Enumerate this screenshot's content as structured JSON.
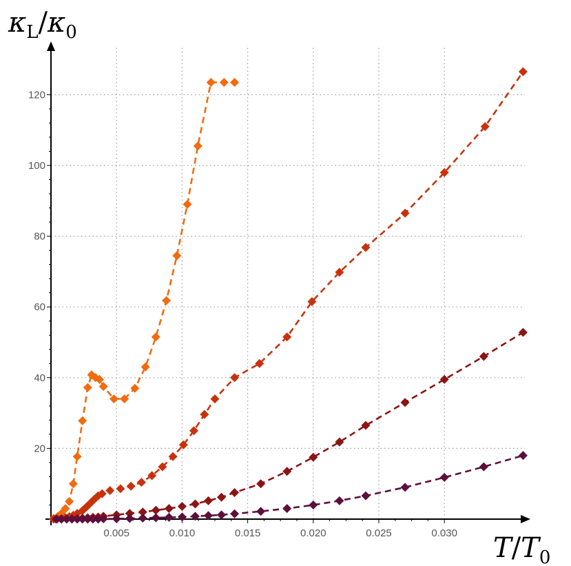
{
  "chart_data": {
    "type": "line",
    "title": "",
    "xlabel": {
      "main": "T",
      "sep": "/",
      "base": "T",
      "sub": "0"
    },
    "ylabel": {
      "main": "κ",
      "sub1": "L",
      "sep": "/",
      "base": "κ",
      "sub2": "0"
    },
    "xlim": [
      0,
      0.0365
    ],
    "ylim": [
      0,
      133
    ],
    "x_ticks": [
      0.005,
      0.01,
      0.015,
      0.02,
      0.025,
      0.03
    ],
    "x_tick_labels": [
      "0.005",
      "0.010",
      "0.015",
      "0.020",
      "0.025",
      "0.030"
    ],
    "y_ticks": [
      20,
      40,
      60,
      80,
      100,
      120
    ],
    "y_tick_labels": [
      "20",
      "40",
      "60",
      "80",
      "100",
      "120"
    ],
    "grid": true,
    "line_style": "dashed",
    "marker": "diamond",
    "series": [
      {
        "color": "#f26b0f",
        "x": [
          0.0002,
          0.0005,
          0.0008,
          0.0011,
          0.0014,
          0.0017,
          0.002,
          0.0024,
          0.0028,
          0.0031,
          0.0034,
          0.0037,
          0.004,
          0.0048,
          0.0056,
          0.0064,
          0.0072,
          0.008,
          0.0088,
          0.0096,
          0.0104,
          0.0112,
          0.0122,
          0.0132,
          0.014
        ],
        "y": [
          0.2,
          0.7,
          1.6,
          3.0,
          5.0,
          10.0,
          17.7,
          27.8,
          37.2,
          40.8,
          40.0,
          39.5,
          37.5,
          34.0,
          34.0,
          37.0,
          43.0,
          51.5,
          61.8,
          74.5,
          89.0,
          105.5,
          123.5,
          123.5,
          123.5
        ]
      },
      {
        "color": "#c8320b",
        "x": [
          0.0002,
          0.0005,
          0.0008,
          0.0011,
          0.0014,
          0.0017,
          0.002,
          0.0024,
          0.0027,
          0.003,
          0.0033,
          0.0036,
          0.0039,
          0.0045,
          0.0053,
          0.0061,
          0.0069,
          0.0077,
          0.0085,
          0.0093,
          0.0101,
          0.0109,
          0.0117,
          0.0125,
          0.014,
          0.0159,
          0.018,
          0.0199,
          0.022,
          0.024,
          0.027,
          0.03,
          0.0331,
          0.036
        ],
        "y": [
          0.0,
          0.1,
          0.2,
          0.4,
          0.7,
          1.1,
          1.6,
          2.4,
          3.4,
          4.5,
          5.6,
          6.6,
          7.2,
          8.1,
          8.6,
          9.3,
          10.4,
          12.3,
          14.8,
          17.7,
          21.0,
          25.0,
          29.6,
          34.0,
          40.0,
          44.0,
          51.5,
          61.5,
          69.8,
          76.8,
          86.5,
          98.0,
          111.0,
          126.5
        ]
      },
      {
        "color": "#8c1414",
        "x": [
          0.0004,
          0.0008,
          0.0012,
          0.0016,
          0.002,
          0.0024,
          0.0028,
          0.0032,
          0.0036,
          0.004,
          0.005,
          0.006,
          0.007,
          0.008,
          0.009,
          0.01,
          0.011,
          0.012,
          0.013,
          0.014,
          0.016,
          0.018,
          0.02,
          0.022,
          0.024,
          0.027,
          0.03,
          0.033,
          0.036
        ],
        "y": [
          0.0,
          0.0,
          0.1,
          0.1,
          0.2,
          0.3,
          0.4,
          0.5,
          0.6,
          0.8,
          1.2,
          1.6,
          2.0,
          2.5,
          3.0,
          3.6,
          4.3,
          5.2,
          6.2,
          7.5,
          10.0,
          13.5,
          17.5,
          21.8,
          26.5,
          33.0,
          39.5,
          46.0,
          52.8
        ]
      },
      {
        "color": "#5e0f3c",
        "x": [
          0.0004,
          0.0008,
          0.0012,
          0.0016,
          0.002,
          0.0024,
          0.0028,
          0.0032,
          0.0036,
          0.004,
          0.005,
          0.006,
          0.007,
          0.008,
          0.009,
          0.01,
          0.011,
          0.012,
          0.013,
          0.014,
          0.016,
          0.018,
          0.02,
          0.022,
          0.024,
          0.027,
          0.03,
          0.033,
          0.036
        ],
        "y": [
          0.0,
          0.0,
          0.0,
          0.0,
          0.0,
          0.0,
          0.0,
          0.0,
          0.0,
          0.1,
          0.1,
          0.2,
          0.3,
          0.4,
          0.5,
          0.6,
          0.8,
          1.0,
          1.2,
          1.5,
          2.2,
          3.0,
          4.0,
          5.2,
          6.6,
          9.0,
          11.8,
          14.8,
          18.0
        ]
      }
    ]
  }
}
